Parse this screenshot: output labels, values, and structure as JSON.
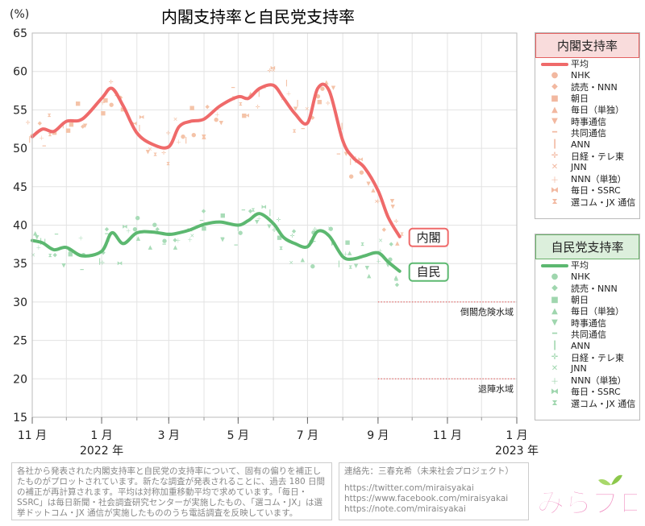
{
  "title": "内閣支持率と自民党支持率",
  "ylabel": "(%)",
  "colors": {
    "cabinet_line": "#ef6a6a",
    "cabinet_points": "#f4c3a8",
    "ldp_line": "#5cb870",
    "ldp_points": "#a9dcb8",
    "cabinet_header_bg": "#f9dcdc",
    "cabinet_header_border": "#e46060",
    "ldp_header_bg": "#dcefdc",
    "ldp_header_border": "#6ab06a",
    "threshold": "#e05050"
  },
  "chart_data": {
    "type": "line",
    "title": "内閣支持率と自民党支持率",
    "ylabel": "(%)",
    "ylim": [
      15,
      65
    ],
    "yticks": [
      15,
      20,
      25,
      30,
      35,
      40,
      45,
      50,
      55,
      60,
      65
    ],
    "xlim": [
      "2021-11-01",
      "2023-01-01"
    ],
    "xticks": [
      {
        "date": "2021-11-01",
        "label": "11 月"
      },
      {
        "date": "2022-01-01",
        "label": "1 月"
      },
      {
        "date": "2022-03-01",
        "label": "3 月"
      },
      {
        "date": "2022-05-01",
        "label": "5 月"
      },
      {
        "date": "2022-07-01",
        "label": "7 月"
      },
      {
        "date": "2022-09-01",
        "label": "9 月"
      },
      {
        "date": "2022-11-01",
        "label": "11 月"
      },
      {
        "date": "2023-01-01",
        "label": "1 月"
      }
    ],
    "year_labels": [
      {
        "date": "2022-01-01",
        "label": "2022 年"
      },
      {
        "date": "2023-01-01",
        "label": "2023 年"
      }
    ],
    "grid": true,
    "legend_position": "right",
    "series": [
      {
        "name": "内閣",
        "label": "内閣",
        "x": [
          "2021-11-01",
          "2021-11-10",
          "2021-11-20",
          "2021-12-01",
          "2021-12-15",
          "2022-01-01",
          "2022-01-10",
          "2022-01-20",
          "2022-02-01",
          "2022-02-15",
          "2022-03-01",
          "2022-03-10",
          "2022-03-20",
          "2022-04-01",
          "2022-04-15",
          "2022-05-01",
          "2022-05-10",
          "2022-05-20",
          "2022-06-01",
          "2022-06-10",
          "2022-06-20",
          "2022-07-01",
          "2022-07-10",
          "2022-07-20",
          "2022-08-01",
          "2022-08-10",
          "2022-08-20",
          "2022-09-01",
          "2022-09-10",
          "2022-09-20"
        ],
        "values": [
          51.5,
          52.5,
          52.2,
          53.5,
          53.8,
          56.5,
          57.8,
          55.5,
          52.0,
          50.5,
          50.2,
          52.8,
          53.5,
          53.8,
          55.5,
          56.7,
          56.5,
          57.8,
          58.2,
          56.5,
          54.5,
          53.3,
          57.8,
          57.5,
          51.0,
          48.8,
          47.5,
          44.5,
          41.0,
          38.5
        ]
      },
      {
        "name": "自民",
        "label": "自民",
        "x": [
          "2021-11-01",
          "2021-11-10",
          "2021-11-20",
          "2021-12-01",
          "2021-12-15",
          "2022-01-01",
          "2022-01-10",
          "2022-01-20",
          "2022-02-01",
          "2022-02-15",
          "2022-03-01",
          "2022-03-10",
          "2022-03-20",
          "2022-04-01",
          "2022-04-15",
          "2022-05-01",
          "2022-05-10",
          "2022-05-20",
          "2022-06-01",
          "2022-06-10",
          "2022-06-20",
          "2022-07-01",
          "2022-07-10",
          "2022-07-20",
          "2022-08-01",
          "2022-08-10",
          "2022-08-20",
          "2022-09-01",
          "2022-09-10",
          "2022-09-20"
        ],
        "values": [
          38.0,
          37.7,
          36.8,
          37.1,
          36.0,
          36.6,
          39.0,
          37.6,
          39.0,
          39.1,
          38.8,
          39.0,
          39.4,
          40.1,
          40.4,
          40.0,
          40.6,
          41.5,
          40.2,
          38.4,
          37.6,
          37.2,
          39.2,
          38.6,
          35.9,
          35.6,
          36.0,
          36.4,
          35.2,
          34.0
        ]
      }
    ],
    "thresholds": [
      {
        "value": 30,
        "label": "倒閣危険水域",
        "from": "2022-09-01"
      },
      {
        "value": 20,
        "label": "退陣水域",
        "from": "2022-09-01"
      }
    ]
  },
  "legend_cabinet": {
    "header": "内閣支持率",
    "items": [
      {
        "sym": "●",
        "label": "NHK"
      },
      {
        "sym": "◆",
        "label": "読売・NNN"
      },
      {
        "sym": "■",
        "label": "朝日"
      },
      {
        "sym": "▲",
        "label": "毎日（単独）"
      },
      {
        "sym": "▼",
        "label": "時事通信"
      },
      {
        "sym": "━",
        "label": "共同通信"
      },
      {
        "sym": "┃",
        "label": "ANN"
      },
      {
        "sym": "✛",
        "label": "日経・テレ東"
      },
      {
        "sym": "✕",
        "label": "JNN"
      },
      {
        "sym": "＋",
        "label": "NNN（単独）"
      },
      {
        "sym": "⧓",
        "label": "毎日・SSRC"
      },
      {
        "sym": "⧗",
        "label": "選コム・JX 通信"
      }
    ],
    "avg_label": "平均"
  },
  "legend_ldp": {
    "header": "自民党支持率",
    "items": [
      {
        "sym": "●",
        "label": "NHK"
      },
      {
        "sym": "◆",
        "label": "読売・NNN"
      },
      {
        "sym": "■",
        "label": "朝日"
      },
      {
        "sym": "▲",
        "label": "毎日（単独）"
      },
      {
        "sym": "▼",
        "label": "時事通信"
      },
      {
        "sym": "━",
        "label": "共同通信"
      },
      {
        "sym": "┃",
        "label": "ANN"
      },
      {
        "sym": "✛",
        "label": "日経・テレ東"
      },
      {
        "sym": "✕",
        "label": "JNN"
      },
      {
        "sym": "＋",
        "label": "NNN（単独）"
      },
      {
        "sym": "⧓",
        "label": "毎日・SSRC"
      },
      {
        "sym": "⧗",
        "label": "選コム・JX 通信"
      }
    ],
    "avg_label": "平均"
  },
  "footer_left": "各社から発表された内閣支持率と自民党の支持率について、固有の偏りを補正したものがプロットされています。新たな調査が発表されることに、過去 180 日間の補正が再計算されます。平均は対称加重移動平均で求めています。「毎日・SSRC」は毎日新聞・社会調査研究センターが実施したもの、「選コム・JX」は選挙ドットコム・JX 通信が実施したもののうち電話調査を反映しています。",
  "footer_right": {
    "contact": "連絡先：三春充希（未来社会プロジェクト）",
    "links": [
      "https://twitter.com/miraisyakai",
      "https://www.facebook.com/miraisyakai",
      "https://note.com/miraisyakai"
    ]
  },
  "logo_text": "みらプロ"
}
